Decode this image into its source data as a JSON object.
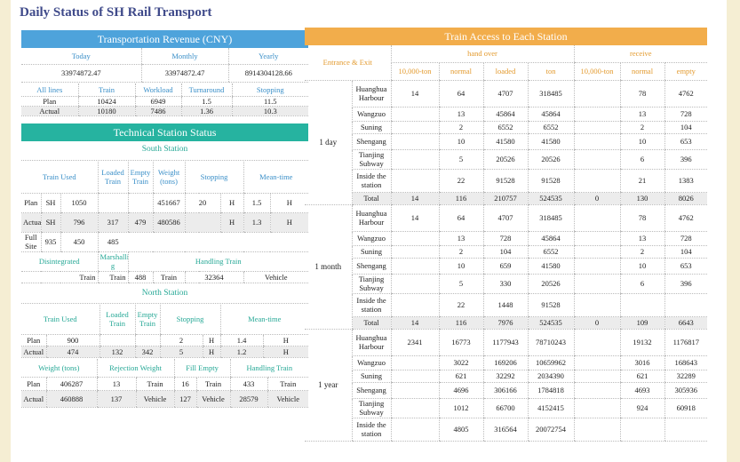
{
  "title": "Daily Status of SH Rail Transport",
  "revenue": {
    "header": "Transportation Revenue (CNY)",
    "cols": [
      "Today",
      "Monthly",
      "Yearly"
    ],
    "vals": [
      "33974872.47",
      "33974872.47",
      "8914304128.66"
    ],
    "sub_header": [
      "All lines",
      "Train",
      "Workload",
      "Turnaround",
      "Stopping"
    ],
    "rows": [
      {
        "label": "Plan",
        "train": "10424",
        "workload": "6949",
        "turnaround": "1.5",
        "stopping": "11.5"
      },
      {
        "label": "Actual",
        "train": "10180",
        "workload": "7486",
        "turnaround": "1.36",
        "stopping": "10.3"
      }
    ]
  },
  "tech": {
    "header": "Technical Station Status",
    "south": {
      "title": "South Station",
      "cols": [
        "Train Used",
        "Loaded Train",
        "Empty Train",
        "Weight (tons)",
        "Stopping",
        "Mean-time"
      ],
      "plan": {
        "label": "Plan",
        "sh": "SH",
        "used": "1050",
        "weight": "451667",
        "stop": "20",
        "h1": "H",
        "mean": "1.5",
        "h2": "H"
      },
      "actual": {
        "label": "Actual",
        "sh": "SH",
        "used": "796",
        "loaded": "317",
        "empty": "479",
        "weight": "480586",
        "h1": "H",
        "mean": "1.3",
        "h2": "H"
      },
      "full": {
        "label": "Full Site",
        "a": "935",
        "b": "450",
        "c": "485"
      },
      "row4": {
        "dis": "Disintegrated",
        "mar": "Marshallin g",
        "handling": "Handling Train"
      },
      "row5": {
        "t1": "Train",
        "t2": "Train",
        "v1": "488",
        "t3": "Train",
        "v2": "32364",
        "veh": "Vehicle"
      }
    },
    "north": {
      "title": "North Station",
      "cols": [
        "Train Used",
        "Loaded Train",
        "Empty Train",
        "Stopping",
        "Mean-time"
      ],
      "plan": {
        "label": "Plan",
        "used": "900",
        "stop": "2",
        "h1": "H",
        "mean": "1.4",
        "h2": "H"
      },
      "actual": {
        "label": "Actual",
        "used": "474",
        "loaded": "132",
        "empty": "342",
        "stop": "5",
        "h1": "H",
        "mean": "1.2",
        "h2": "H"
      },
      "cols2": [
        "Weight (tons)",
        "Rejection Weight",
        "Fill Empty",
        "Handling Train"
      ],
      "plan2": {
        "label": "Plan",
        "w": "406287",
        "r": "13",
        "rt": "Train",
        "f": "16",
        "ft": "Train",
        "h": "433",
        "ht": "Train"
      },
      "actual2": {
        "label": "Actual",
        "w": "460888",
        "r": "137",
        "rt": "Vehicle",
        "f": "127",
        "ft": "Vehicle",
        "h": "28579",
        "ht": "Vehicle"
      }
    }
  },
  "access": {
    "header": "Train Access to Each Station",
    "entrance": "Entrance & Exit",
    "handover": "hand over",
    "receive": "receive",
    "subcols": [
      "10,000-ton",
      "normal",
      "loaded",
      "ton",
      "10,000-ton",
      "normal",
      "empty"
    ],
    "periods": [
      {
        "label": "1 day",
        "rows": [
          {
            "st": "Huanghua Harbour",
            "a": "14",
            "b": "64",
            "c": "4707",
            "d": "318485",
            "e": "",
            "f": "78",
            "g": "4762"
          },
          {
            "st": "Wangzuo",
            "a": "",
            "b": "13",
            "c": "45864",
            "d": "45864",
            "e": "",
            "f": "13",
            "g": "728"
          },
          {
            "st": "Suning",
            "a": "",
            "b": "2",
            "c": "6552",
            "d": "6552",
            "e": "",
            "f": "2",
            "g": "104"
          },
          {
            "st": "Shengang",
            "a": "",
            "b": "10",
            "c": "41580",
            "d": "41580",
            "e": "",
            "f": "10",
            "g": "653"
          },
          {
            "st": "Tianjing Subway",
            "a": "",
            "b": "5",
            "c": "20526",
            "d": "20526",
            "e": "",
            "f": "6",
            "g": "396"
          },
          {
            "st": "Inside the station",
            "a": "",
            "b": "22",
            "c": "91528",
            "d": "91528",
            "e": "",
            "f": "21",
            "g": "1383"
          },
          {
            "st": "Total",
            "a": "14",
            "b": "116",
            "c": "210757",
            "d": "524535",
            "e": "0",
            "f": "130",
            "g": "8026"
          }
        ]
      },
      {
        "label": "1 month",
        "rows": [
          {
            "st": "Huanghua Harbour",
            "a": "14",
            "b": "64",
            "c": "4707",
            "d": "318485",
            "e": "",
            "f": "78",
            "g": "4762"
          },
          {
            "st": "Wangzuo",
            "a": "",
            "b": "13",
            "c": "728",
            "d": "45864",
            "e": "",
            "f": "13",
            "g": "728"
          },
          {
            "st": "Suning",
            "a": "",
            "b": "2",
            "c": "104",
            "d": "6552",
            "e": "",
            "f": "2",
            "g": "104"
          },
          {
            "st": "Shengang",
            "a": "",
            "b": "10",
            "c": "659",
            "d": "41580",
            "e": "",
            "f": "10",
            "g": "653"
          },
          {
            "st": "Tianjing Subway",
            "a": "",
            "b": "5",
            "c": "330",
            "d": "20526",
            "e": "",
            "f": "6",
            "g": "396"
          },
          {
            "st": "Inside the station",
            "a": "",
            "b": "22",
            "c": "1448",
            "d": "91528",
            "e": "",
            "f": "",
            "g": ""
          },
          {
            "st": "Total",
            "a": "14",
            "b": "116",
            "c": "7976",
            "d": "524535",
            "e": "0",
            "f": "109",
            "g": "6643"
          }
        ]
      },
      {
        "label": "1 year",
        "rows": [
          {
            "st": "Huanghua Harbour",
            "a": "2341",
            "b": "16773",
            "c": "1177943",
            "d": "78710243",
            "e": "",
            "f": "19132",
            "g": "1176817"
          },
          {
            "st": "Wangzuo",
            "a": "",
            "b": "3022",
            "c": "169206",
            "d": "10659962",
            "e": "",
            "f": "3016",
            "g": "168643"
          },
          {
            "st": "Suning",
            "a": "",
            "b": "621",
            "c": "32292",
            "d": "2034390",
            "e": "",
            "f": "621",
            "g": "32289"
          },
          {
            "st": "Shengang",
            "a": "",
            "b": "4696",
            "c": "306166",
            "d": "1784818",
            "e": "",
            "f": "4693",
            "g": "305936"
          },
          {
            "st": "Tianjing Subway",
            "a": "",
            "b": "1012",
            "c": "66700",
            "d": "4152415",
            "e": "",
            "f": "924",
            "g": "60918"
          },
          {
            "st": "Inside the station",
            "a": "",
            "b": "4805",
            "c": "316564",
            "d": "20072754",
            "e": "",
            "f": "",
            "g": ""
          }
        ]
      }
    ]
  }
}
